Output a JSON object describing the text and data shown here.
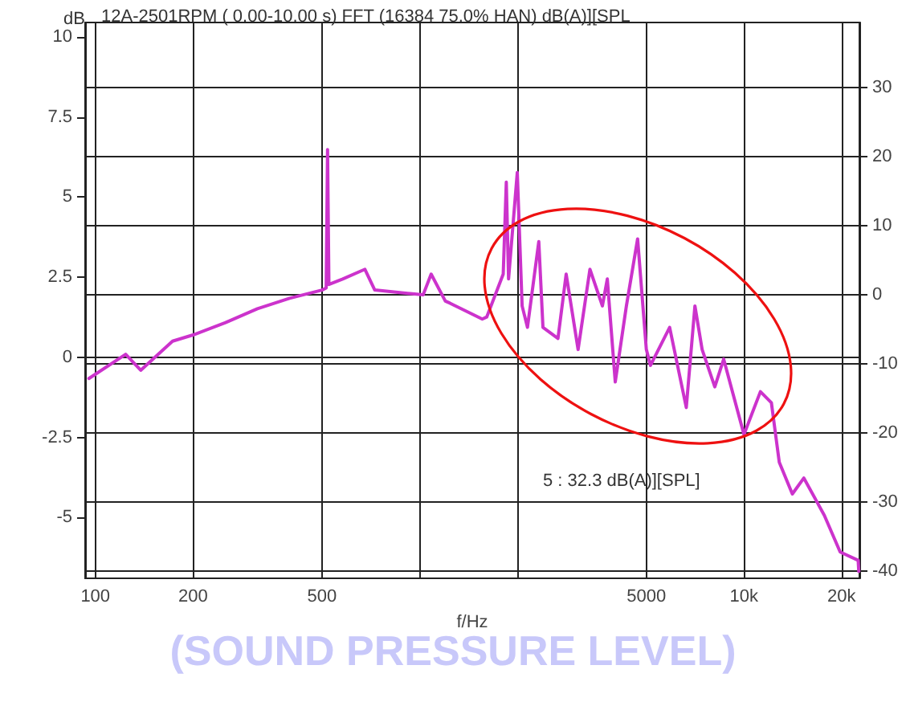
{
  "chart_data": {
    "type": "line",
    "title": "12A-2501RPM ( 0.00-10.00 s) FFT (16384 75.0% HAN) dB(A)][SPL",
    "ylabel": "dB",
    "xlabel": "f/Hz",
    "annotations": [
      "5 : 32.3 dB(A)][SPL]",
      "(SOUND PRESSURE LEVEL)"
    ],
    "log": "x",
    "grid": true,
    "marker": "none",
    "line_style": "solid",
    "xlim": [
      93,
      22700
    ],
    "xticks": [
      100,
      200,
      500,
      {
        "value": 1000,
        "label": null
      },
      {
        "value": 2000,
        "label": null
      },
      5000,
      {
        "value": 10000,
        "label": "10k"
      },
      {
        "value": 20000,
        "label": "20k"
      }
    ],
    "ylim": [
      -6.9,
      10.45
    ],
    "yticks": [
      10,
      7.5,
      5,
      2.5,
      0,
      -2.5,
      -5
    ],
    "y2lim": [
      -41,
      39.4
    ],
    "y2ticks": [
      30,
      20,
      10,
      0,
      -10,
      -20,
      -30,
      -40
    ],
    "series": [
      {
        "color": "#cc33cc",
        "axis": "y2",
        "x": [
          95.5,
          124,
          138,
          173,
          200,
          252,
          316,
          397,
          500,
          515,
          520,
          525,
          579,
          678,
          727,
          1025,
          1085,
          1200,
          1240,
          1560,
          1610,
          1810,
          1850,
          1880,
          2000,
          2070,
          2150,
          2330,
          2400,
          2670,
          2830,
          3080,
          3350,
          3660,
          3790,
          4010,
          4340,
          4700,
          5000,
          5150,
          5900,
          6640,
          7060,
          7430,
          8130,
          8660,
          10000,
          11240,
          12150,
          12850,
          14100,
          15300,
          17700,
          19800,
          22500,
          22600
        ],
        "values": [
          -12.1,
          -8.6,
          -10.9,
          -6.7,
          -5.8,
          -4,
          -2,
          -0.5,
          0.7,
          1,
          21,
          1.5,
          2.3,
          3.7,
          0.7,
          0,
          3,
          -0.9,
          -1.2,
          -3.5,
          -3.2,
          3,
          16.3,
          2.3,
          17.7,
          -1.6,
          -4.7,
          7.7,
          -4.7,
          -6.3,
          3,
          -7.9,
          3.7,
          -1.6,
          2.3,
          -12.6,
          -1.6,
          8.1,
          -7.9,
          -10.2,
          -4.7,
          -16.3,
          -1.6,
          -7.9,
          -13.3,
          -9.3,
          -20.2,
          -14,
          -15.6,
          -24.2,
          -28.8,
          -26.5,
          -31.9,
          -37.2,
          -38.4,
          -40
        ]
      }
    ]
  }
}
